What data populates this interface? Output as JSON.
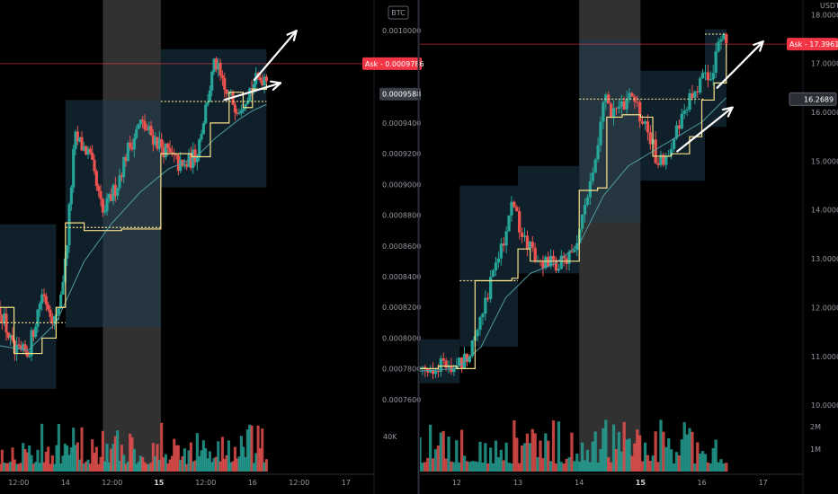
{
  "colors": {
    "background": "#000000",
    "up": "#26a69a",
    "down": "#ef5350",
    "vwap": "#f7e08b",
    "ma": "#4f9aa3",
    "box": "#1d3a4c",
    "weekend": "#3a3a3a",
    "ask": "#f23645",
    "arrow": "#ffffff"
  },
  "chart_data": [
    {
      "type": "candlestick",
      "symbol_currency": "BTC",
      "x_tick_labels": [
        "12:00",
        "14",
        "12:00",
        "15",
        "12:00",
        "16",
        "12:00",
        "17"
      ],
      "x_tick_bold": [
        false,
        false,
        false,
        true,
        false,
        false,
        false,
        false
      ],
      "x_tick_times": [
        0.0,
        0.5,
        1.0,
        1.5,
        2.0,
        2.5,
        3.0,
        3.5
      ],
      "x_range": [
        -0.2,
        3.8
      ],
      "ylim": [
        0.00075,
        0.00102
      ],
      "y_tick_labels": [
        "0.0007600",
        "0.0007800",
        "0.0008000",
        "0.0008200",
        "0.0008400",
        "0.0008600",
        "0.0008800",
        "0.0009000",
        "0.0009200",
        "0.0009400",
        "0.0009600",
        "0.0009800",
        "0.0010000"
      ],
      "y_ticks": [
        0.00076,
        0.00078,
        0.0008,
        0.00082,
        0.00084,
        0.00086,
        0.00088,
        0.0009,
        0.00092,
        0.00094,
        0.00096,
        0.00098,
        0.001
      ],
      "ask_label": "Ask",
      "ask_value": "0.0009786",
      "ask_y": 0.0009786,
      "last_value": "0.0009588",
      "last_y": 0.0009588,
      "volume_label": "40K",
      "weekend_shade": [
        [
          0.9,
          1.52
        ]
      ],
      "value_area_boxes": [
        {
          "t0": -0.2,
          "t1": 0.4,
          "low": 0.000767,
          "high": 0.000874
        },
        {
          "t0": 0.5,
          "t1": 1.52,
          "low": 0.000807,
          "high": 0.000955
        },
        {
          "t0": 1.52,
          "t1": 2.65,
          "low": 0.000898,
          "high": 0.000988
        }
      ],
      "keypoints": [
        [
          -0.2,
          0.00082
        ],
        [
          -0.05,
          0.00079
        ],
        [
          0.1,
          0.00079
        ],
        [
          0.25,
          0.00083
        ],
        [
          0.4,
          0.00081
        ],
        [
          0.5,
          0.00085
        ],
        [
          0.6,
          0.00093
        ],
        [
          0.75,
          0.00092
        ],
        [
          0.9,
          0.00088
        ],
        [
          1.05,
          0.0009
        ],
        [
          1.15,
          0.00092
        ],
        [
          1.3,
          0.00094
        ],
        [
          1.45,
          0.00093
        ],
        [
          1.6,
          0.00092
        ],
        [
          1.75,
          0.00091
        ],
        [
          1.9,
          0.00092
        ],
        [
          2.0,
          0.00095
        ],
        [
          2.1,
          0.00098
        ],
        [
          2.2,
          0.00096
        ],
        [
          2.35,
          0.00095
        ],
        [
          2.5,
          0.000965
        ],
        [
          2.65,
          0.000972
        ]
      ],
      "vwap_steps": [
        [
          -0.2,
          0.00082
        ],
        [
          -0.05,
          0.00079
        ],
        [
          0.1,
          0.00079
        ],
        [
          0.25,
          0.0008
        ],
        [
          0.4,
          0.00082
        ],
        [
          0.5,
          0.000875
        ],
        [
          0.7,
          0.00087
        ],
        [
          0.9,
          0.00087
        ],
        [
          1.1,
          0.000871
        ],
        [
          1.52,
          0.00092
        ],
        [
          1.7,
          0.00092
        ],
        [
          1.85,
          0.000918
        ],
        [
          2.05,
          0.00094
        ],
        [
          2.15,
          0.00094
        ],
        [
          2.25,
          0.00096
        ],
        [
          2.4,
          0.00095
        ],
        [
          2.5,
          0.000962
        ],
        [
          2.65,
          0.000965
        ]
      ],
      "ma_points": [
        [
          -0.2,
          0.000795
        ],
        [
          0.1,
          0.000792
        ],
        [
          0.4,
          0.00081
        ],
        [
          0.7,
          0.00085
        ],
        [
          1.0,
          0.000875
        ],
        [
          1.3,
          0.000895
        ],
        [
          1.6,
          0.00091
        ],
        [
          1.9,
          0.000918
        ],
        [
          2.1,
          0.00093
        ],
        [
          2.35,
          0.000942
        ],
        [
          2.5,
          0.000948
        ],
        [
          2.65,
          0.000952
        ]
      ],
      "dotted_levels": [
        {
          "t0": -0.2,
          "t1": 0.5,
          "y": 0.00081
        },
        {
          "t0": 0.5,
          "t1": 1.52,
          "y": 0.000872
        },
        {
          "t0": 1.52,
          "t1": 2.65,
          "y": 0.000954
        }
      ],
      "arrows": [
        {
          "from": [
            2.2,
            0.000955
          ],
          "to": [
            2.8,
            0.000966
          ]
        },
        {
          "from": [
            2.52,
            0.000968
          ],
          "to": [
            2.97,
            0.001
          ]
        }
      ]
    },
    {
      "type": "candlestick",
      "symbol_currency": "USDT",
      "x_tick_labels": [
        "12",
        "13",
        "14",
        "15",
        "16",
        "17"
      ],
      "x_tick_bold": [
        false,
        false,
        false,
        true,
        false,
        false
      ],
      "x_tick_times": [
        0,
        1,
        2,
        3,
        4,
        5
      ],
      "x_range": [
        -0.6,
        5.65
      ],
      "ylim": [
        9.8,
        18.3
      ],
      "y_tick_labels": [
        "10.0000",
        "11.0000",
        "12.0000",
        "13.0000",
        "14.0000",
        "15.0000",
        "16.0000",
        "17.0000",
        "18.0000"
      ],
      "y_ticks": [
        10,
        11,
        12,
        13,
        14,
        15,
        16,
        17,
        18
      ],
      "ask_label": "Ask",
      "ask_value": "17.3961",
      "ask_y": 17.3961,
      "last_value": "16.2689",
      "last_y": 16.2689,
      "volume_labels": [
        "2M",
        "1M"
      ],
      "volume_ticks": [
        2000000,
        1000000
      ],
      "weekend_shade": [
        [
          2.0,
          3.0
        ]
      ],
      "value_area_boxes": [
        {
          "t0": -0.6,
          "t1": 0.05,
          "low": 10.45,
          "high": 11.35
        },
        {
          "t0": 0.05,
          "t1": 1.0,
          "low": 11.2,
          "high": 14.5
        },
        {
          "t0": 1.0,
          "t1": 2.0,
          "low": 12.7,
          "high": 14.9
        },
        {
          "t0": 2.0,
          "t1": 3.0,
          "low": 13.75,
          "high": 17.5
        },
        {
          "t0": 3.0,
          "t1": 4.05,
          "low": 14.6,
          "high": 16.85
        },
        {
          "t0": 4.05,
          "t1": 4.4,
          "low": 15.7,
          "high": 17.7
        }
      ],
      "keypoints": [
        [
          -0.6,
          10.75
        ],
        [
          -0.3,
          10.8
        ],
        [
          0.0,
          10.75
        ],
        [
          0.2,
          11.1
        ],
        [
          0.4,
          11.9
        ],
        [
          0.6,
          12.7
        ],
        [
          0.8,
          13.6
        ],
        [
          0.9,
          14.2
        ],
        [
          1.1,
          13.3
        ],
        [
          1.3,
          13.1
        ],
        [
          1.5,
          12.9
        ],
        [
          1.7,
          12.9
        ],
        [
          1.9,
          13.1
        ],
        [
          2.1,
          14.0
        ],
        [
          2.3,
          15.4
        ],
        [
          2.4,
          16.3
        ],
        [
          2.6,
          15.9
        ],
        [
          2.8,
          16.4
        ],
        [
          3.0,
          15.9
        ],
        [
          3.15,
          15.4
        ],
        [
          3.3,
          15.0
        ],
        [
          3.5,
          15.3
        ],
        [
          3.7,
          15.9
        ],
        [
          3.9,
          16.5
        ],
        [
          4.1,
          16.7
        ],
        [
          4.25,
          17.2
        ],
        [
          4.4,
          17.6
        ]
      ],
      "vwap_steps": [
        [
          -0.6,
          10.75
        ],
        [
          -0.3,
          10.8
        ],
        [
          0.0,
          10.75
        ],
        [
          0.3,
          12.55
        ],
        [
          0.6,
          12.55
        ],
        [
          0.9,
          12.6
        ],
        [
          1.0,
          13.2
        ],
        [
          1.2,
          12.95
        ],
        [
          1.5,
          12.95
        ],
        [
          1.8,
          12.95
        ],
        [
          2.0,
          14.4
        ],
        [
          2.3,
          14.45
        ],
        [
          2.45,
          15.9
        ],
        [
          2.7,
          15.95
        ],
        [
          3.0,
          15.9
        ],
        [
          3.2,
          15.1
        ],
        [
          3.5,
          15.15
        ],
        [
          3.8,
          15.5
        ],
        [
          4.0,
          16.25
        ],
        [
          4.2,
          16.6
        ],
        [
          4.4,
          17.4
        ]
      ],
      "ma_points": [
        [
          -0.6,
          10.7
        ],
        [
          0.0,
          10.75
        ],
        [
          0.4,
          11.2
        ],
        [
          0.8,
          12.2
        ],
        [
          1.2,
          12.7
        ],
        [
          1.6,
          12.9
        ],
        [
          2.0,
          13.3
        ],
        [
          2.4,
          14.3
        ],
        [
          2.8,
          14.9
        ],
        [
          3.2,
          15.2
        ],
        [
          3.6,
          15.5
        ],
        [
          4.0,
          15.8
        ],
        [
          4.4,
          16.3
        ]
      ],
      "dotted_levels": [
        {
          "t0": 0.05,
          "t1": 1.0,
          "y": 12.55
        },
        {
          "t0": 2.0,
          "t1": 3.0,
          "y": 16.27
        },
        {
          "t0": 3.0,
          "t1": 4.05,
          "y": 16.27
        },
        {
          "t0": 4.05,
          "t1": 4.4,
          "y": 17.6
        }
      ],
      "arrows": [
        {
          "from": [
            3.6,
            15.2
          ],
          "to": [
            4.5,
            16.1
          ]
        },
        {
          "from": [
            4.25,
            16.5
          ],
          "to": [
            5.0,
            17.45
          ]
        }
      ]
    }
  ]
}
